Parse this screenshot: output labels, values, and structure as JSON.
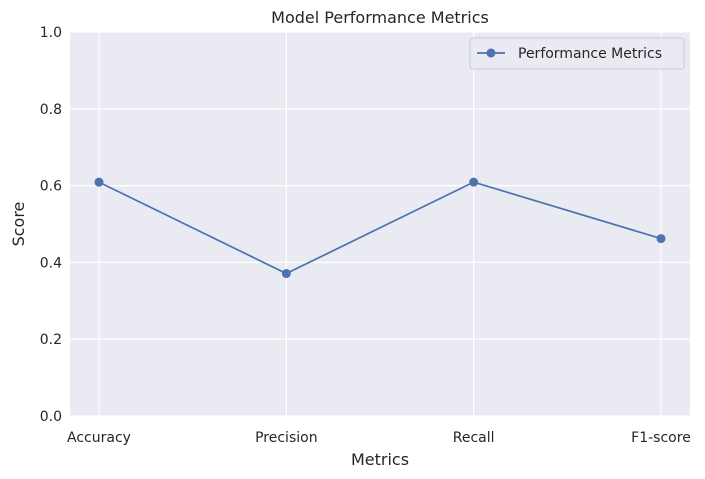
{
  "chart_data": {
    "type": "line",
    "title": "Model Performance Metrics",
    "xlabel": "Metrics",
    "ylabel": "Score",
    "categories": [
      "Accuracy",
      "Precision",
      "Recall",
      "F1-score"
    ],
    "series": [
      {
        "name": "Performance Metrics",
        "values": [
          0.609,
          0.371,
          0.609,
          0.462
        ],
        "color": "#4c72b0",
        "marker": "circle"
      }
    ],
    "ylim": [
      0,
      1
    ],
    "yticks": [
      "0.0",
      "0.2",
      "0.4",
      "0.6",
      "0.8",
      "1.0"
    ],
    "grid": true,
    "legend_position": "top-right",
    "background": "#eaeaf2"
  }
}
